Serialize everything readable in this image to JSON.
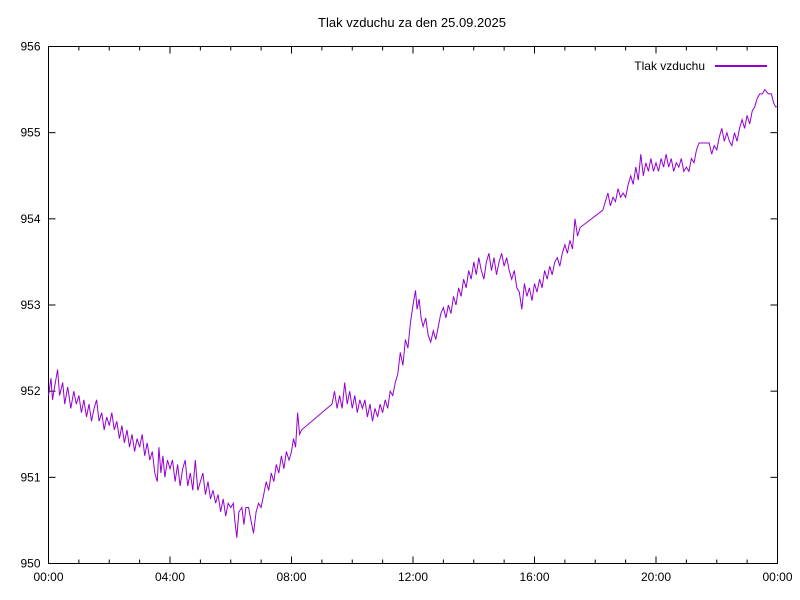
{
  "chart_data": {
    "type": "line",
    "title": "Tlak vzduchu za den 25.09.2025",
    "xlabel": "",
    "ylabel": "",
    "x_unit": "time (HH:MM)",
    "y_unit": "hPa",
    "xlim_minutes": [
      0,
      1440
    ],
    "ylim": [
      950,
      956
    ],
    "x_tick_interval_minutes": 240,
    "x_minor_tick_minutes": 60,
    "x_tick_labels": [
      "00:00",
      "04:00",
      "08:00",
      "12:00",
      "16:00",
      "20:00",
      "00:00"
    ],
    "y_tick_labels": [
      "950",
      "951",
      "952",
      "953",
      "954",
      "955",
      "956"
    ],
    "grid": false,
    "legend_position": "top-right-inside",
    "line_color": "#9400d3",
    "axis_color": "#000000",
    "series": [
      {
        "name": "Tlak vzduchu",
        "points": [
          [
            0,
            951.95
          ],
          [
            5,
            952.15
          ],
          [
            8,
            951.9
          ],
          [
            12,
            952.05
          ],
          [
            18,
            952.25
          ],
          [
            22,
            951.95
          ],
          [
            28,
            952.1
          ],
          [
            32,
            951.85
          ],
          [
            38,
            952.05
          ],
          [
            44,
            951.8
          ],
          [
            50,
            952.0
          ],
          [
            55,
            951.85
          ],
          [
            60,
            951.95
          ],
          [
            65,
            951.75
          ],
          [
            70,
            951.9
          ],
          [
            75,
            951.7
          ],
          [
            80,
            951.85
          ],
          [
            85,
            951.65
          ],
          [
            90,
            951.8
          ],
          [
            95,
            951.9
          ],
          [
            100,
            951.65
          ],
          [
            105,
            951.75
          ],
          [
            110,
            951.55
          ],
          [
            115,
            951.7
          ],
          [
            120,
            951.6
          ],
          [
            125,
            951.75
          ],
          [
            130,
            951.55
          ],
          [
            135,
            951.65
          ],
          [
            140,
            951.45
          ],
          [
            145,
            951.6
          ],
          [
            150,
            951.4
          ],
          [
            155,
            951.55
          ],
          [
            160,
            951.35
          ],
          [
            165,
            951.5
          ],
          [
            170,
            951.3
          ],
          [
            175,
            951.45
          ],
          [
            180,
            951.35
          ],
          [
            185,
            951.5
          ],
          [
            190,
            951.25
          ],
          [
            195,
            951.4
          ],
          [
            200,
            951.2
          ],
          [
            205,
            951.3
          ],
          [
            210,
            951.05
          ],
          [
            215,
            950.95
          ],
          [
            218,
            951.35
          ],
          [
            222,
            951.05
          ],
          [
            226,
            951.25
          ],
          [
            230,
            951.0
          ],
          [
            235,
            951.2
          ],
          [
            240,
            951.1
          ],
          [
            245,
            951.2
          ],
          [
            250,
            950.95
          ],
          [
            255,
            951.15
          ],
          [
            260,
            950.9
          ],
          [
            265,
            951.1
          ],
          [
            270,
            951.2
          ],
          [
            275,
            950.9
          ],
          [
            280,
            951.05
          ],
          [
            285,
            950.85
          ],
          [
            290,
            951.2
          ],
          [
            295,
            950.85
          ],
          [
            300,
            950.95
          ],
          [
            305,
            951.05
          ],
          [
            310,
            950.8
          ],
          [
            315,
            950.95
          ],
          [
            320,
            950.75
          ],
          [
            325,
            950.85
          ],
          [
            330,
            950.7
          ],
          [
            335,
            950.8
          ],
          [
            340,
            950.6
          ],
          [
            345,
            950.75
          ],
          [
            350,
            950.55
          ],
          [
            355,
            950.7
          ],
          [
            360,
            950.65
          ],
          [
            365,
            950.7
          ],
          [
            368,
            950.5
          ],
          [
            372,
            950.3
          ],
          [
            376,
            950.6
          ],
          [
            382,
            950.65
          ],
          [
            386,
            950.45
          ],
          [
            390,
            950.65
          ],
          [
            395,
            950.65
          ],
          [
            400,
            950.5
          ],
          [
            405,
            950.35
          ],
          [
            410,
            950.6
          ],
          [
            415,
            950.7
          ],
          [
            420,
            950.65
          ],
          [
            425,
            950.8
          ],
          [
            430,
            950.95
          ],
          [
            435,
            950.85
          ],
          [
            440,
            951.05
          ],
          [
            445,
            950.95
          ],
          [
            450,
            951.15
          ],
          [
            455,
            951.05
          ],
          [
            460,
            951.25
          ],
          [
            465,
            951.1
          ],
          [
            470,
            951.3
          ],
          [
            475,
            951.2
          ],
          [
            480,
            951.3
          ],
          [
            484,
            951.45
          ],
          [
            488,
            951.35
          ],
          [
            492,
            951.75
          ],
          [
            496,
            951.5
          ],
          [
            500,
            951.55
          ],
          [
            560,
            951.85
          ],
          [
            565,
            952.0
          ],
          [
            570,
            951.8
          ],
          [
            575,
            951.95
          ],
          [
            580,
            951.8
          ],
          [
            585,
            952.1
          ],
          [
            590,
            951.85
          ],
          [
            595,
            952.0
          ],
          [
            600,
            951.8
          ],
          [
            605,
            951.95
          ],
          [
            610,
            951.75
          ],
          [
            615,
            951.9
          ],
          [
            620,
            951.8
          ],
          [
            625,
            951.9
          ],
          [
            630,
            951.7
          ],
          [
            635,
            951.85
          ],
          [
            640,
            951.65
          ],
          [
            645,
            951.8
          ],
          [
            650,
            951.7
          ],
          [
            655,
            951.85
          ],
          [
            660,
            951.75
          ],
          [
            665,
            951.9
          ],
          [
            670,
            951.8
          ],
          [
            675,
            952.0
          ],
          [
            680,
            951.95
          ],
          [
            685,
            952.1
          ],
          [
            690,
            952.2
          ],
          [
            695,
            952.45
          ],
          [
            700,
            952.3
          ],
          [
            705,
            952.6
          ],
          [
            710,
            952.5
          ],
          [
            715,
            952.8
          ],
          [
            720,
            953.0
          ],
          [
            725,
            953.17
          ],
          [
            728,
            952.95
          ],
          [
            732,
            953.07
          ],
          [
            736,
            952.85
          ],
          [
            740,
            952.75
          ],
          [
            745,
            952.85
          ],
          [
            750,
            952.65
          ],
          [
            755,
            952.57
          ],
          [
            760,
            952.7
          ],
          [
            765,
            952.6
          ],
          [
            770,
            952.75
          ],
          [
            775,
            952.9
          ],
          [
            780,
            952.97
          ],
          [
            785,
            952.85
          ],
          [
            790,
            953.0
          ],
          [
            795,
            952.9
          ],
          [
            800,
            953.1
          ],
          [
            805,
            953.0
          ],
          [
            810,
            953.2
          ],
          [
            815,
            953.1
          ],
          [
            820,
            953.3
          ],
          [
            825,
            953.2
          ],
          [
            830,
            953.4
          ],
          [
            835,
            953.3
          ],
          [
            840,
            953.5
          ],
          [
            845,
            953.35
          ],
          [
            850,
            953.55
          ],
          [
            855,
            953.4
          ],
          [
            860,
            953.3
          ],
          [
            865,
            953.5
          ],
          [
            870,
            953.6
          ],
          [
            875,
            953.4
          ],
          [
            880,
            953.55
          ],
          [
            885,
            953.35
          ],
          [
            890,
            953.5
          ],
          [
            895,
            953.6
          ],
          [
            900,
            953.45
          ],
          [
            905,
            953.55
          ],
          [
            910,
            953.4
          ],
          [
            915,
            953.3
          ],
          [
            920,
            953.4
          ],
          [
            925,
            953.2
          ],
          [
            930,
            953.15
          ],
          [
            935,
            952.95
          ],
          [
            940,
            953.25
          ],
          [
            945,
            953.1
          ],
          [
            950,
            953.2
          ],
          [
            955,
            953.05
          ],
          [
            960,
            953.25
          ],
          [
            965,
            953.15
          ],
          [
            970,
            953.3
          ],
          [
            975,
            953.2
          ],
          [
            980,
            953.4
          ],
          [
            985,
            953.3
          ],
          [
            990,
            953.45
          ],
          [
            995,
            953.35
          ],
          [
            1000,
            953.5
          ],
          [
            1005,
            953.55
          ],
          [
            1010,
            953.45
          ],
          [
            1015,
            953.6
          ],
          [
            1020,
            953.7
          ],
          [
            1025,
            953.6
          ],
          [
            1030,
            953.75
          ],
          [
            1035,
            953.65
          ],
          [
            1040,
            954.0
          ],
          [
            1045,
            953.8
          ],
          [
            1050,
            953.9
          ],
          [
            1095,
            954.1
          ],
          [
            1100,
            954.2
          ],
          [
            1105,
            954.3
          ],
          [
            1110,
            954.15
          ],
          [
            1115,
            954.25
          ],
          [
            1120,
            954.2
          ],
          [
            1125,
            954.35
          ],
          [
            1130,
            954.25
          ],
          [
            1135,
            954.3
          ],
          [
            1140,
            954.25
          ],
          [
            1145,
            954.4
          ],
          [
            1150,
            954.5
          ],
          [
            1155,
            954.4
          ],
          [
            1160,
            954.6
          ],
          [
            1165,
            954.45
          ],
          [
            1170,
            954.75
          ],
          [
            1175,
            954.5
          ],
          [
            1180,
            954.65
          ],
          [
            1185,
            954.55
          ],
          [
            1190,
            954.7
          ],
          [
            1195,
            954.55
          ],
          [
            1200,
            954.65
          ],
          [
            1205,
            954.55
          ],
          [
            1210,
            954.7
          ],
          [
            1215,
            954.6
          ],
          [
            1220,
            954.75
          ],
          [
            1225,
            954.6
          ],
          [
            1230,
            954.7
          ],
          [
            1235,
            954.55
          ],
          [
            1240,
            954.65
          ],
          [
            1245,
            954.6
          ],
          [
            1250,
            954.7
          ],
          [
            1255,
            954.55
          ],
          [
            1260,
            954.6
          ],
          [
            1265,
            954.55
          ],
          [
            1270,
            954.7
          ],
          [
            1275,
            954.65
          ],
          [
            1280,
            954.8
          ],
          [
            1285,
            954.88
          ],
          [
            1305,
            954.88
          ],
          [
            1310,
            954.75
          ],
          [
            1315,
            954.85
          ],
          [
            1320,
            954.8
          ],
          [
            1325,
            954.95
          ],
          [
            1330,
            955.05
          ],
          [
            1335,
            954.9
          ],
          [
            1340,
            955.0
          ],
          [
            1345,
            954.9
          ],
          [
            1350,
            954.85
          ],
          [
            1355,
            955.0
          ],
          [
            1360,
            954.9
          ],
          [
            1365,
            955.05
          ],
          [
            1370,
            955.15
          ],
          [
            1375,
            955.05
          ],
          [
            1380,
            955.2
          ],
          [
            1385,
            955.1
          ],
          [
            1390,
            955.25
          ],
          [
            1395,
            955.3
          ],
          [
            1400,
            955.4
          ],
          [
            1405,
            955.45
          ],
          [
            1410,
            955.45
          ],
          [
            1415,
            955.5
          ],
          [
            1422,
            955.45
          ],
          [
            1428,
            955.45
          ],
          [
            1432,
            955.35
          ],
          [
            1436,
            955.3
          ],
          [
            1440,
            955.3
          ]
        ]
      }
    ]
  }
}
